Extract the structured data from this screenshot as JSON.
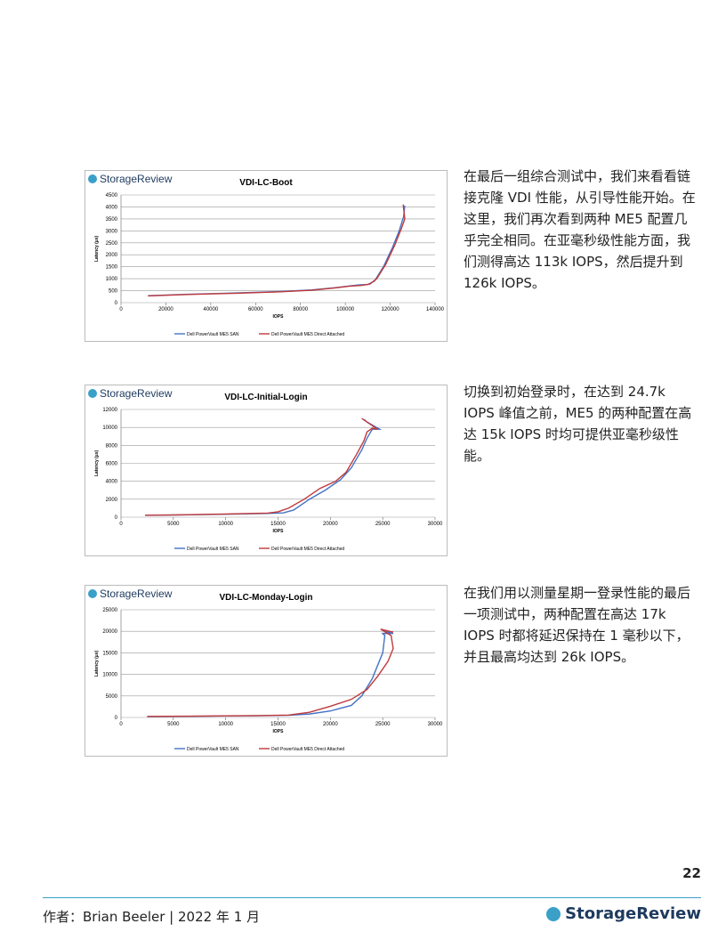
{
  "chart_data": [
    {
      "type": "line",
      "brand": "StorageReview",
      "title": "VDI-LC-Boot",
      "x_label": "IOPS",
      "y_label": "Latency (µs)",
      "xlim": [
        0,
        140000
      ],
      "xticks": [
        0,
        20000,
        40000,
        60000,
        80000,
        100000,
        120000,
        140000
      ],
      "ylim": [
        0,
        4500
      ],
      "yticks": [
        0,
        500,
        1000,
        1500,
        2000,
        2500,
        3000,
        3500,
        4000,
        4500
      ],
      "series": [
        {
          "name": "Dell PowerVault ME5 SAN",
          "color": "#4472c4",
          "x": [
            12000,
            30000,
            50000,
            70000,
            85000,
            95000,
            102000,
            106000,
            110000,
            113000,
            117000,
            121000,
            124000,
            126000,
            126500
          ],
          "values": [
            290,
            350,
            400,
            460,
            530,
            620,
            700,
            740,
            760,
            900,
            1500,
            2300,
            3000,
            3600,
            4050
          ]
        },
        {
          "name": "Dell PowerVault ME5 Direct Attached",
          "color": "#c0393b",
          "x": [
            12000,
            30000,
            50000,
            70000,
            85000,
            95000,
            102000,
            107000,
            111000,
            114000,
            118000,
            122000,
            125000,
            126500,
            125800
          ],
          "values": [
            280,
            340,
            390,
            450,
            520,
            610,
            690,
            720,
            780,
            1000,
            1600,
            2400,
            3100,
            3500,
            4100
          ]
        }
      ]
    },
    {
      "type": "line",
      "brand": "StorageReview",
      "title": "VDI-LC-Initial-Login",
      "x_label": "IOPS",
      "y_label": "Latency (µs)",
      "xlim": [
        0,
        30000
      ],
      "xticks": [
        0,
        5000,
        10000,
        15000,
        20000,
        25000,
        30000
      ],
      "ylim": [
        0,
        12000
      ],
      "yticks": [
        0,
        2000,
        4000,
        6000,
        8000,
        10000,
        12000
      ],
      "series": [
        {
          "name": "Dell PowerVault ME5 SAN",
          "color": "#4472c4",
          "x": [
            2300,
            6000,
            10000,
            14000,
            15500,
            16500,
            18000,
            19500,
            21000,
            22000,
            23000,
            23500,
            24000,
            24700,
            23500,
            23200
          ],
          "values": [
            200,
            250,
            330,
            420,
            480,
            800,
            2000,
            3000,
            4200,
            5500,
            7500,
            8800,
            9800,
            9800,
            10600,
            10900
          ]
        },
        {
          "name": "Dell PowerVault ME5 Direct Attached",
          "color": "#c0393b",
          "x": [
            2300,
            6000,
            10000,
            14000,
            15000,
            16000,
            17500,
            19000,
            20500,
            21500,
            22500,
            23200,
            23500,
            24000,
            24500,
            23000
          ],
          "values": [
            220,
            270,
            350,
            450,
            600,
            1000,
            2000,
            3200,
            4000,
            5000,
            7000,
            8500,
            9500,
            9900,
            9800,
            11000
          ]
        }
      ]
    },
    {
      "type": "line",
      "brand": "StorageReview",
      "title": "VDI-LC-Monday-Login",
      "x_label": "IOPS",
      "y_label": "Latency (µs)",
      "xlim": [
        0,
        30000
      ],
      "xticks": [
        0,
        5000,
        10000,
        15000,
        20000,
        25000,
        30000
      ],
      "ylim": [
        0,
        25000
      ],
      "yticks": [
        0,
        5000,
        10000,
        15000,
        20000,
        25000
      ],
      "series": [
        {
          "name": "Dell PowerVault ME5 SAN",
          "color": "#4472c4",
          "x": [
            2500,
            8000,
            13000,
            16000,
            18000,
            20000,
            22000,
            23000,
            24000,
            25000,
            25200,
            25000,
            26000,
            25200
          ],
          "values": [
            200,
            300,
            400,
            500,
            800,
            1500,
            2800,
            5000,
            9000,
            15000,
            19000,
            19500,
            19500,
            20000
          ]
        },
        {
          "name": "Dell PowerVault ME5 Direct Attached",
          "color": "#c0393b",
          "x": [
            2500,
            8000,
            13000,
            16000,
            18000,
            20000,
            22000,
            23500,
            24500,
            25500,
            26000,
            25800,
            24800,
            26000
          ],
          "values": [
            250,
            330,
            430,
            550,
            1200,
            2600,
            4200,
            6500,
            9500,
            13000,
            16000,
            19000,
            20500,
            19800
          ]
        }
      ]
    }
  ],
  "paragraphs": [
    "在最后一组综合测试中，我们来看看链接克隆 VDI 性能，从引导性能开始。在这里，我们再次看到两种 ME5 配置几乎完全相同。在亚毫秒级性能方面，我们测得高达 113k IOPS，然后提升到 126k IOPS。",
    "切换到初始登录时，在达到 24.7k IOPS 峰值之前，ME5 的两种配置在高达 15k IOPS 时均可提供亚毫秒级性能。",
    "在我们用以测量星期一登录性能的最后一项测试中，两种配置在高达 17k IOPS 时都将延迟保持在 1 毫秒以下，并且最高均达到 26k IOPS。"
  ],
  "page_number": "22",
  "footer": {
    "author": "作者：Brian Beeler | 2022 年 1 月",
    "brand": "StorageReview"
  }
}
